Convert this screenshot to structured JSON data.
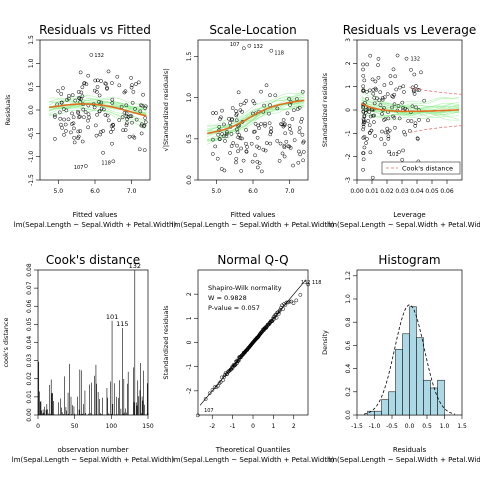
{
  "chart_data": [
    {
      "type": "scatter",
      "title": "Residuals vs Fitted",
      "xlabel": "Fitted values",
      "ylabel": "Residuals",
      "formula": "lm(Sepal.Length ~ Sepal.Width + Petal.Width)",
      "xlim": [
        4.5,
        7.5
      ],
      "ylim": [
        -1.5,
        1.5
      ],
      "xticks": [
        "5.0",
        "6.0",
        "7.0"
      ],
      "yticks": [
        "-1.5",
        "-1.0",
        "-0.5",
        "0.0",
        "0.5",
        "1.0",
        "1.5"
      ],
      "labels": [
        "132",
        "107",
        "118"
      ],
      "label_points": [
        [
          5.9,
          1.18
        ],
        [
          5.75,
          -1.2
        ],
        [
          6.5,
          -1.1
        ]
      ],
      "smooth_color": "#e07020",
      "band_color": "#90ee90",
      "point_color": "#000000"
    },
    {
      "type": "scatter",
      "title": "Scale-Location",
      "xlabel": "Fitted values",
      "ylabel": "√|Standardized residuals|",
      "formula": "lm(Sepal.Length ~ Sepal.Width + Petal.Width)",
      "xlim": [
        4.5,
        7.5
      ],
      "ylim": [
        0,
        1.7
      ],
      "xticks": [
        "5.0",
        "6.0",
        "7.0"
      ],
      "yticks": [
        "0.0",
        "0.5",
        "1.0",
        "1.5"
      ],
      "labels": [
        "132",
        "107",
        "118"
      ],
      "smooth_color": "#e07020",
      "band_color": "#90ee90"
    },
    {
      "type": "scatter",
      "title": "Residuals vs Leverage",
      "xlabel": "Leverage",
      "ylabel": "Standardized residuals",
      "formula": "lm(Sepal.Length ~ Sepal.Width + Petal.Width)",
      "xlim": [
        0,
        0.07
      ],
      "ylim": [
        -3,
        3
      ],
      "xticks": [
        "0.00",
        "0.01",
        "0.02",
        "0.03",
        "0.04",
        "0.05",
        "0.06"
      ],
      "yticks": [
        "-3",
        "-2",
        "-1",
        "0",
        "1",
        "2",
        "3"
      ],
      "labels": [
        "132",
        "107",
        "118",
        "101"
      ],
      "legend": "Cook's distance",
      "legend_position": "bottom-right",
      "smooth_color": "#e07020",
      "band_color": "#90ee90",
      "cook_color": "#e07070"
    },
    {
      "type": "bar",
      "title": "Cook's distance",
      "xlabel": "observation number",
      "ylabel": "cook's distance",
      "formula": "lm(Sepal.Length ~ Sepal.Width + Petal.Width)",
      "xlim": [
        0,
        150
      ],
      "ylim": [
        0,
        0.08
      ],
      "xticks": [
        "0",
        "50",
        "100",
        "150"
      ],
      "yticks": [
        "0.00",
        "0.01",
        "0.02",
        "0.03",
        "0.04",
        "0.05",
        "0.06",
        "0.07",
        "0.08"
      ],
      "labels": [
        "132",
        "101",
        "115"
      ],
      "label_values": [
        [
          132,
          0.08
        ],
        [
          101,
          0.052
        ],
        [
          115,
          0.048
        ]
      ]
    },
    {
      "type": "scatter",
      "title": "Normal Q-Q",
      "xlabel": "Theoretical Quantiles",
      "ylabel": "Standardized residuals",
      "formula": "lm(Sepal.Length ~ Sepal.Width + Petal.Width)",
      "xlim": [
        -2.7,
        2.7
      ],
      "ylim": [
        -3,
        3
      ],
      "xticks": [
        "-2",
        "-1",
        "0",
        "1",
        "2"
      ],
      "yticks": [
        "-2",
        "-1",
        "0",
        "1",
        "2"
      ],
      "labels": [
        "132",
        "118",
        "107"
      ],
      "stats_lines": [
        "Shapiro-Wilk normality",
        "W = 0.9828",
        "P-value = 0.057"
      ]
    },
    {
      "type": "histogram",
      "title": "Histogram",
      "xlabel": "Residuals",
      "ylabel": "Density",
      "formula": "lm(Sepal.Length ~ Sepal.Width + Petal.Width)",
      "xlim": [
        -1.5,
        1.5
      ],
      "ylim": [
        0,
        1.25
      ],
      "xticks": [
        "-1.5",
        "-1.0",
        "-0.5",
        "0.0",
        "0.5",
        "1.0",
        "1.5"
      ],
      "yticks": [
        "0.0",
        "0.2",
        "0.4",
        "0.6",
        "0.8",
        "1.0",
        "1.2"
      ],
      "bins": [
        {
          "x0": -1.2,
          "x1": -1.0,
          "density": 0.033
        },
        {
          "x0": -1.0,
          "x1": -0.8,
          "density": 0.033
        },
        {
          "x0": -0.8,
          "x1": -0.6,
          "density": 0.133
        },
        {
          "x0": -0.6,
          "x1": -0.4,
          "density": 0.2
        },
        {
          "x0": -0.4,
          "x1": -0.2,
          "density": 0.567
        },
        {
          "x0": -0.2,
          "x1": 0.0,
          "density": 0.7
        },
        {
          "x0": 0.0,
          "x1": 0.2,
          "density": 0.933
        },
        {
          "x0": 0.2,
          "x1": 0.4,
          "density": 0.667
        },
        {
          "x0": 0.4,
          "x1": 0.6,
          "density": 0.3
        },
        {
          "x0": 0.6,
          "x1": 0.8,
          "density": 0.233
        },
        {
          "x0": 0.8,
          "x1": 1.0,
          "density": 0.3
        }
      ],
      "bar_color": "#add8e6",
      "normal_curve": {
        "mean": 0.0,
        "sd": 0.42
      }
    }
  ]
}
